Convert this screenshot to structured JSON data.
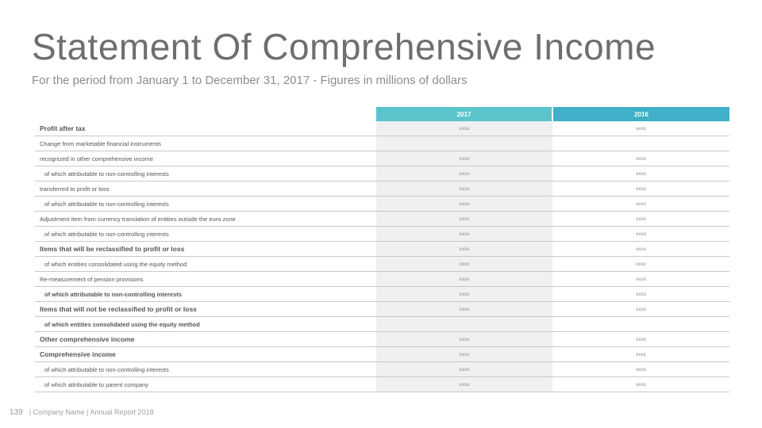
{
  "title": "Statement Of Comprehensive Income",
  "subtitle": "For the period from January 1 to December 31, 2017 - Figures in millions of dollars",
  "table": {
    "headers": [
      "",
      "2017",
      "2016"
    ],
    "rows": [
      {
        "label": "Profit after tax",
        "style": "bold",
        "indent": false,
        "v2017": "xxxx",
        "v2016": "xxxx"
      },
      {
        "label": "Change from marketable financial instruments",
        "style": "normal",
        "indent": false,
        "v2017": "",
        "v2016": ""
      },
      {
        "label": "recognized in other comprehensive income",
        "style": "normal",
        "indent": false,
        "v2017": "xxxx",
        "v2016": "xxxx"
      },
      {
        "label": "of which attributable to non-controlling interests",
        "style": "normal",
        "indent": true,
        "v2017": "xxxx",
        "v2016": "xxxx"
      },
      {
        "label": "transferred to profit or loss",
        "style": "normal",
        "indent": false,
        "v2017": "xxxx",
        "v2016": "xxxx"
      },
      {
        "label": "of which attributable to non-controlling interests",
        "style": "normal",
        "indent": true,
        "v2017": "xxxx",
        "v2016": "xxxx"
      },
      {
        "label": "Adjustment item from currency translation of entities outside the euro zone",
        "style": "normal",
        "indent": false,
        "v2017": "xxxx",
        "v2016": "xxxx"
      },
      {
        "label": "of which attributable to non-controlling interests",
        "style": "normal",
        "indent": true,
        "v2017": "xxxx",
        "v2016": "xxxx"
      },
      {
        "label": "Items that will be reclassified to profit or loss",
        "style": "bold",
        "indent": false,
        "v2017": "xxxx",
        "v2016": "xxxx"
      },
      {
        "label": "of which entities consolidated using the equity method",
        "style": "normal",
        "indent": true,
        "v2017": "xxxx",
        "v2016": "xxxx"
      },
      {
        "label": "Re-measurement of pension provisions",
        "style": "normal",
        "indent": false,
        "v2017": "xxxx",
        "v2016": "xxxx"
      },
      {
        "label": "of which attributable to non-controlling interests",
        "style": "semibold",
        "indent": true,
        "v2017": "xxxx",
        "v2016": "xxxx"
      },
      {
        "label": "Items that will not be reclassified to profit or loss",
        "style": "bold",
        "indent": false,
        "v2017": "xxxx",
        "v2016": "xxxx"
      },
      {
        "label": "of which entities consolidated using the equity method",
        "style": "semibold",
        "indent": true,
        "v2017": "",
        "v2016": ""
      },
      {
        "label": "Other comprehensive income",
        "style": "bold",
        "indent": false,
        "v2017": "xxxx",
        "v2016": "xxxx"
      },
      {
        "label": "Comprehensive income",
        "style": "bold",
        "indent": false,
        "v2017": "xxxx",
        "v2016": "xxxx"
      },
      {
        "label": "of which attributable to non-controlling interests",
        "style": "normal",
        "indent": true,
        "v2017": "xxxx",
        "v2016": "xxxx"
      },
      {
        "label": "of which attributable to parent company",
        "style": "normal",
        "indent": true,
        "v2017": "xxxx",
        "v2016": "xxxx"
      }
    ]
  },
  "footer": {
    "page_number": "139",
    "text": "| Company Name | Annual Report 2018"
  },
  "colors": {
    "header_2017": "#5ac3cc",
    "header_2016": "#3fb0c7",
    "column_2017_fill": "#f0f0f0",
    "title": "#6e6e6e"
  }
}
